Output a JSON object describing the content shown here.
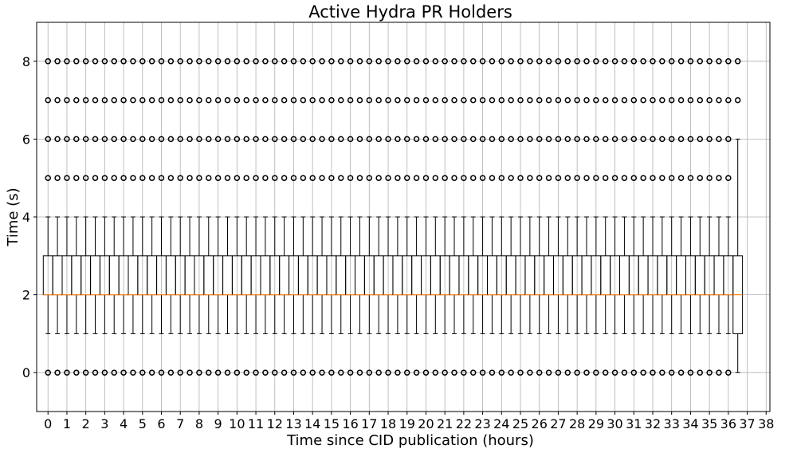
{
  "chart_data": {
    "type": "box",
    "title": "Active Hydra PR Holders",
    "xlabel": "Time since CID publication (hours)",
    "ylabel": "Time (s)",
    "xlim": [
      -0.6,
      38.2
    ],
    "ylim": [
      -1,
      9
    ],
    "grid": true,
    "x_ticks": [
      0,
      1,
      2,
      3,
      4,
      5,
      6,
      7,
      8,
      9,
      10,
      11,
      12,
      13,
      14,
      15,
      16,
      17,
      18,
      19,
      20,
      21,
      22,
      23,
      24,
      25,
      26,
      27,
      28,
      29,
      30,
      31,
      32,
      33,
      34,
      35,
      36,
      37,
      38
    ],
    "y_ticks": [
      0,
      2,
      4,
      6,
      8
    ],
    "box_interval_hours": 0.5,
    "box_count": 74,
    "box_stats": {
      "median": 2,
      "q1": 2,
      "q3": 3,
      "whisker_low": 1,
      "whisker_high": 4,
      "outliers": [
        0,
        5,
        6,
        7,
        8
      ]
    },
    "last_box": {
      "hour": 36.5,
      "median": 2,
      "q1": 1,
      "q3": 3,
      "whisker_low": 0,
      "whisker_high": 6,
      "outliers": [
        7,
        8
      ]
    },
    "colors": {
      "box": "#000000",
      "median": "#ff7f0e",
      "grid": "#b0b0b0",
      "flier": "#000000"
    }
  }
}
